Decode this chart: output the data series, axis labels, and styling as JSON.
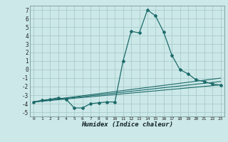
{
  "xlabel": "Humidex (Indice chaleur)",
  "bg_color": "#cce8e8",
  "grid_color": "#aacccc",
  "line_color": "#1e6b6b",
  "xlim": [
    -0.5,
    23.5
  ],
  "ylim": [
    -5.5,
    7.5
  ],
  "xticks": [
    0,
    1,
    2,
    3,
    4,
    5,
    6,
    7,
    8,
    9,
    10,
    11,
    12,
    13,
    14,
    15,
    16,
    17,
    18,
    19,
    20,
    21,
    22,
    23
  ],
  "yticks": [
    -5,
    -4,
    -3,
    -2,
    -1,
    0,
    1,
    2,
    3,
    4,
    5,
    6,
    7
  ],
  "series1_x": [
    0,
    1,
    2,
    3,
    4,
    5,
    6,
    7,
    8,
    9,
    10,
    11,
    12,
    13,
    14,
    15,
    16,
    17,
    18,
    19,
    20,
    21,
    22,
    23
  ],
  "series1_y": [
    -3.8,
    -3.6,
    -3.5,
    -3.3,
    -3.5,
    -4.5,
    -4.5,
    -4.0,
    -3.9,
    -3.8,
    -3.8,
    1.0,
    4.5,
    4.3,
    7.0,
    6.3,
    4.4,
    1.7,
    0.0,
    -0.5,
    -1.2,
    -1.4,
    -1.7,
    -1.8
  ],
  "series2_x": [
    0,
    23
  ],
  "series2_y": [
    -3.8,
    -1.0
  ],
  "series3_x": [
    0,
    23
  ],
  "series3_y": [
    -3.8,
    -1.8
  ],
  "series4_x": [
    0,
    23
  ],
  "series4_y": [
    -3.8,
    -1.4
  ]
}
